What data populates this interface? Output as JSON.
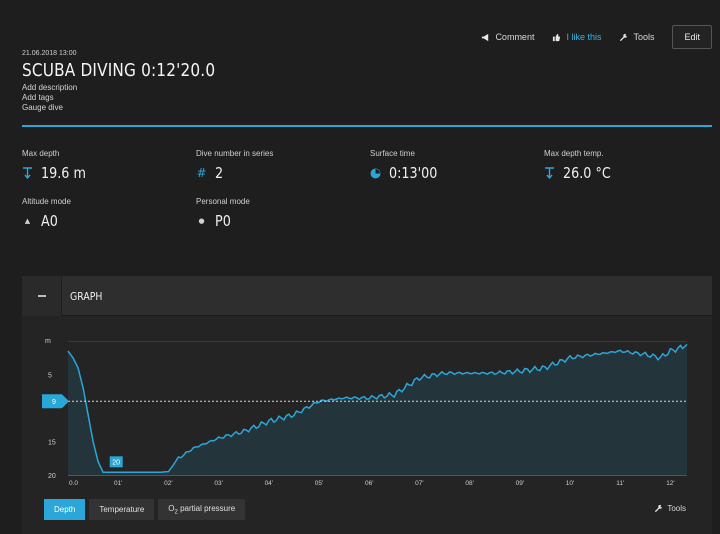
{
  "topbar": {
    "comment": "Comment",
    "like": "I like this",
    "tools": "Tools",
    "edit": "Edit"
  },
  "header": {
    "date": "21.06.2018 13:00",
    "title": "SCUBA DIVING 0:12'20.0",
    "add_description": "Add description",
    "add_tags": "Add tags",
    "dive_type": "Gauge dive"
  },
  "stats": {
    "max_depth": {
      "label": "Max depth",
      "value": "19.6 m"
    },
    "dive_number": {
      "label": "Dive number in series",
      "value": "2"
    },
    "surface_time": {
      "label": "Surface time",
      "value": "0:13'00"
    },
    "max_depth_temp": {
      "label": "Max depth temp.",
      "value": "26.0 °C"
    },
    "altitude_mode": {
      "label": "Altitude mode",
      "value": "A0"
    },
    "personal_mode": {
      "label": "Personal mode",
      "value": "P0"
    }
  },
  "graph": {
    "title": "GRAPH",
    "tabs": [
      "Depth",
      "Temperature",
      "O2 partial pressure"
    ],
    "active_tab": "Depth",
    "tools": "Tools"
  },
  "colors": {
    "accent": "#2aa6d8",
    "background": "#1e1e1e",
    "panel": "#242424"
  },
  "chart_data": {
    "type": "area",
    "ylabel": "m",
    "y_ticks": [
      "5",
      "15",
      "20"
    ],
    "ylim": [
      0,
      20
    ],
    "y_inverted": true,
    "x_ticks": [
      "0.0",
      "01'",
      "02'",
      "03'",
      "04'",
      "05'",
      "06'",
      "07'",
      "08'",
      "09'",
      "10'",
      "11'",
      "12'"
    ],
    "xlim": [
      0,
      12.33
    ],
    "marker_line": {
      "value": 9,
      "label": "9"
    },
    "max_label": {
      "x": 0.95,
      "y": 19.6,
      "label": "20"
    },
    "x": [
      0,
      0.1,
      0.2,
      0.3,
      0.4,
      0.5,
      0.6,
      0.7,
      0.8,
      0.9,
      1.0,
      1.3,
      1.6,
      1.8,
      2.0,
      2.2,
      2.5,
      3.0,
      3.5,
      4.0,
      4.5,
      5.0,
      5.5,
      6.0,
      6.5,
      7.0,
      7.5,
      8.0,
      8.5,
      9.0,
      9.5,
      10.0,
      10.5,
      11.0,
      11.5,
      11.8,
      12.0,
      12.2,
      12.33
    ],
    "y": [
      1.5,
      2.5,
      4.0,
      7.0,
      11.0,
      15.0,
      18.0,
      19.6,
      19.6,
      19.6,
      19.6,
      19.6,
      19.6,
      19.6,
      19.5,
      17.5,
      16.0,
      14.5,
      13.5,
      12.0,
      11.0,
      9.0,
      8.5,
      8.5,
      8.0,
      5.5,
      4.8,
      4.8,
      4.8,
      4.5,
      4.0,
      2.5,
      2.0,
      1.5,
      2.0,
      2.5,
      1.5,
      1.0,
      0.5
    ]
  }
}
